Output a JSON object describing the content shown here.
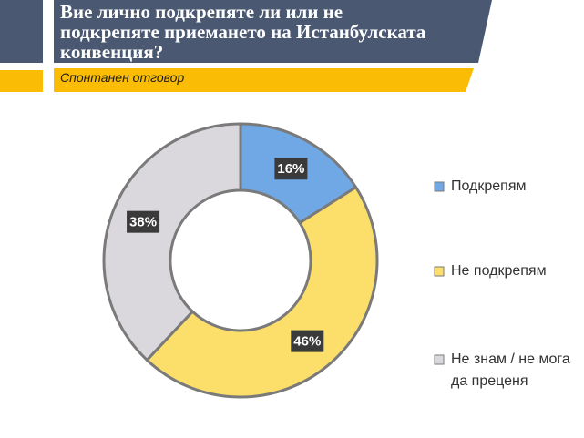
{
  "header": {
    "title": "Вие лично подкрепяте ли или не\nподкрепяте приемането на Истанбулската\nконвенция?",
    "subtitle": "Спонтанен отговор",
    "colors": {
      "banner": "#4a5872",
      "accent": "#fbbc05"
    }
  },
  "chart_data": {
    "type": "pie",
    "variant": "donut",
    "title": "Вие лично подкрепяте ли или не подкрепяте приемането на Истанбулската конвенция?",
    "subtitle": "Спонтанен отговор",
    "legend_position": "right",
    "slices": [
      {
        "name": "Подкрепям",
        "value": 16,
        "label": "16%",
        "color": "#6fa8e4",
        "legend": [
          "Подкрепям"
        ]
      },
      {
        "name": "Не подкрепям",
        "value": 46,
        "label": "46%",
        "color": "#fbdf6a",
        "legend": [
          "Не подкрепям"
        ]
      },
      {
        "name": "Не знам / не мога да преценя",
        "value": 38,
        "label": "38%",
        "color": "#dad8dc",
        "legend": [
          "Не знам / не мога",
          "да преценя"
        ]
      }
    ]
  }
}
